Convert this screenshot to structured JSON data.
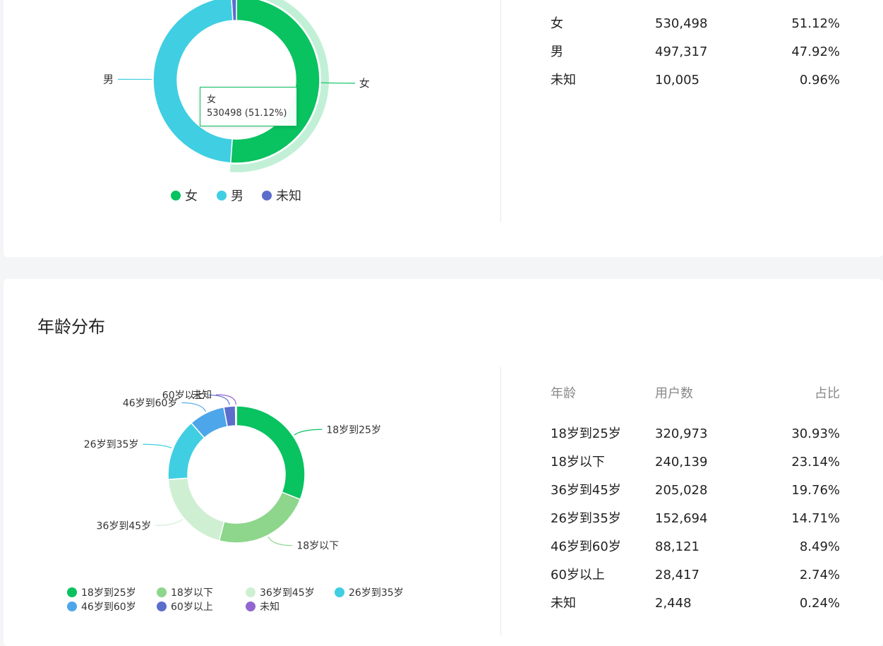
{
  "gender": {
    "table_rows": [
      {
        "label": "女",
        "count": "530,498",
        "pct": "51.12%"
      },
      {
        "label": "男",
        "count": "497,317",
        "pct": "47.92%"
      },
      {
        "label": "未知",
        "count": "10,005",
        "pct": "0.96%"
      }
    ],
    "tooltip": {
      "name": "女",
      "value": "530498 (51.12%)"
    }
  },
  "age": {
    "title": "年龄分布",
    "table_header": {
      "age": "年龄",
      "users": "用户数",
      "ratio": "占比"
    },
    "table_rows": [
      {
        "label": "18岁到25岁",
        "count": "320,973",
        "pct": "30.93%"
      },
      {
        "label": "18岁以下",
        "count": "240,139",
        "pct": "23.14%"
      },
      {
        "label": "36岁到45岁",
        "count": "205,028",
        "pct": "19.76%"
      },
      {
        "label": "26岁到35岁",
        "count": "152,694",
        "pct": "14.71%"
      },
      {
        "label": "46岁到60岁",
        "count": "88,121",
        "pct": "8.49%"
      },
      {
        "label": "60岁以上",
        "count": "28,417",
        "pct": "2.74%"
      },
      {
        "label": "未知",
        "count": "2,448",
        "pct": "0.24%"
      }
    ]
  },
  "chart_data": [
    {
      "type": "pie",
      "categories": [
        "女",
        "男",
        "未知"
      ],
      "values": [
        530498,
        497317,
        10005
      ],
      "colors": [
        "#09c260",
        "#40cee2",
        "#5b6ecb"
      ],
      "highlight": "女",
      "legend": "bottom"
    },
    {
      "type": "pie",
      "title": "年龄分布",
      "categories": [
        "18岁到25岁",
        "18岁以下",
        "36岁到45岁",
        "26岁到35岁",
        "46岁到60岁",
        "60岁以上",
        "未知"
      ],
      "values": [
        320973,
        240139,
        205028,
        152694,
        88121,
        28417,
        2448
      ],
      "colors": [
        "#09c260",
        "#8dd68c",
        "#cfefd2",
        "#40cee2",
        "#4da6ea",
        "#5b6ecb",
        "#9266d1"
      ],
      "legend": "bottom"
    }
  ]
}
